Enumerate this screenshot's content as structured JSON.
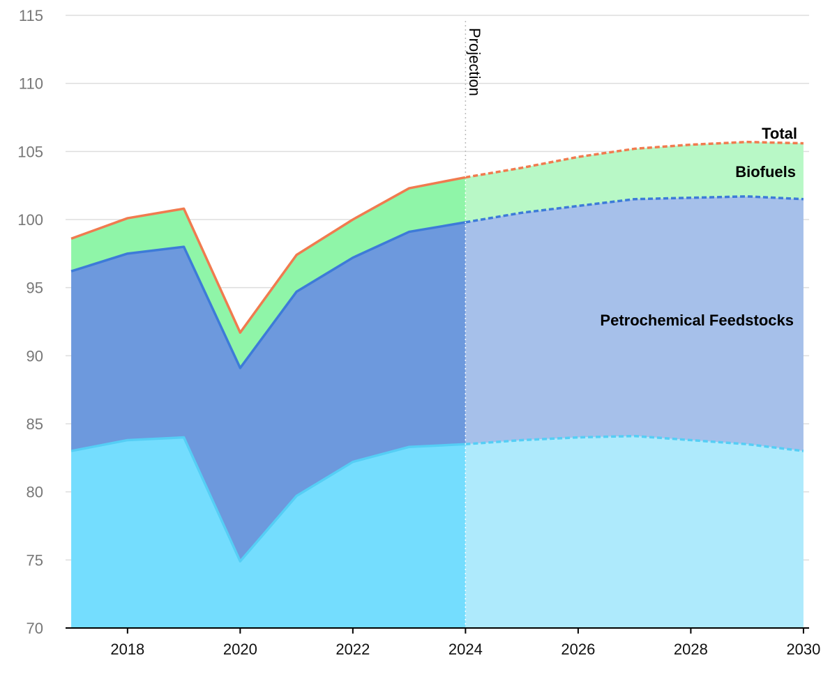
{
  "chart_data": {
    "type": "area",
    "x": [
      2017,
      2018,
      2019,
      2020,
      2021,
      2022,
      2023,
      2024,
      2025,
      2026,
      2027,
      2028,
      2029,
      2030
    ],
    "xlim": [
      2016.9,
      2030.1
    ],
    "ylim": [
      70,
      115
    ],
    "yticks": [
      70,
      75,
      80,
      85,
      90,
      95,
      100,
      105,
      110,
      115
    ],
    "xticks": [
      2018,
      2020,
      2022,
      2024,
      2026,
      2028,
      2030
    ],
    "projection_start": 2024,
    "projection_label": "Projection",
    "grid": true,
    "series": [
      {
        "key": "base",
        "name": "",
        "values": [
          83.0,
          83.8,
          84.0,
          74.9,
          79.7,
          82.2,
          83.3,
          83.5,
          83.8,
          84.0,
          84.1,
          83.8,
          83.5,
          83.0
        ],
        "fill": "#74ddfe",
        "fill_projection": "#aeeafc",
        "line": "#55cef5"
      },
      {
        "key": "petrochemical",
        "name": "Petrochemical Feedstocks",
        "values": [
          96.2,
          97.5,
          98.0,
          89.1,
          94.7,
          97.2,
          99.1,
          99.8,
          100.5,
          101.0,
          101.5,
          101.6,
          101.7,
          101.5
        ],
        "fill": "#6d99dd",
        "fill_projection": "#a6c0ea",
        "line": "#3d7bd8"
      },
      {
        "key": "biofuels",
        "name": "Biofuels",
        "values": [
          98.6,
          100.1,
          100.8,
          91.7,
          97.4,
          100.0,
          102.3,
          103.1,
          103.8,
          104.6,
          105.2,
          105.5,
          105.7,
          105.6
        ],
        "fill": "#8ff5a8",
        "fill_projection": "#b8f8c6",
        "line": "#f07b4f"
      }
    ],
    "labels": {
      "total": "Total",
      "biofuels": "Biofuels",
      "petrochemical": "Petrochemical Feedstocks"
    }
  }
}
